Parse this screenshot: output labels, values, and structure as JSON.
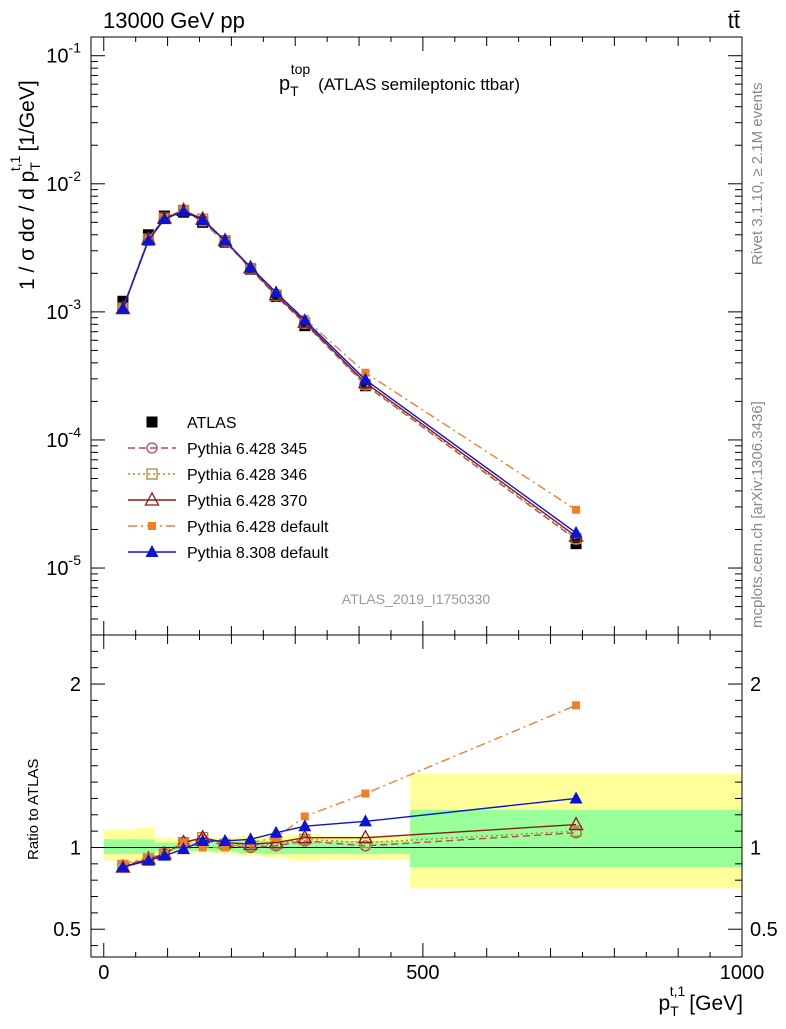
{
  "header": {
    "energy_label": "13000 GeV pp",
    "process_label": "tt̄"
  },
  "side_labels": {
    "rivet": "Rivet 3.1.10, ≥ 2.1M events",
    "mcplots": "mcplots.cern.ch [arXiv:1306.3436]"
  },
  "analysis_id": "ATLAS_2019_I1750330",
  "chart_data": [
    {
      "type": "scatter",
      "title_main": "p",
      "title_sub": "T",
      "title_sup": "top",
      "title_rest": "(ATLAS semileptonic ttbar)",
      "ylabel_main": "1 / σ dσ / d p",
      "ylabel_sup": "t,1",
      "ylabel_sub": "T",
      "ylabel_unit": "[1/GeV]",
      "yscale": "log",
      "ylim": [
        3e-06,
        0.14
      ],
      "xlim": [
        -20,
        1000
      ],
      "y_tick_labels": [
        "10",
        "10",
        "10",
        "10",
        "10"
      ],
      "y_tick_exponents": [
        "-5",
        "-4",
        "-3",
        "-2",
        "-1"
      ],
      "y_tick_values": [
        1e-05,
        0.0001,
        0.001,
        0.01,
        0.1
      ],
      "legend_position": "bottom-left",
      "x": [
        30,
        70,
        95,
        125,
        155,
        190,
        230,
        270,
        315,
        410,
        740
      ],
      "series": [
        {
          "name": "ATLAS",
          "color": "#000000",
          "marker": "filled-square",
          "line": "none",
          "values": [
            0.00121,
            0.004,
            0.0056,
            0.006,
            0.005,
            0.0035,
            0.00215,
            0.00132,
            0.00078,
            0.000265,
            1.55e-05
          ]
        },
        {
          "name": "Pythia 6.428 345",
          "color": "#b5485e",
          "marker": "open-circle",
          "line": "dashed",
          "values": [
            0.00108,
            0.0037,
            0.0054,
            0.0062,
            0.0052,
            0.00355,
            0.00216,
            0.00133,
            0.00081,
            0.000268,
            1.67e-05
          ]
        },
        {
          "name": "Pythia 6.428 346",
          "color": "#b8862e",
          "marker": "open-square",
          "line": "dotted",
          "values": [
            0.00107,
            0.0037,
            0.0054,
            0.0062,
            0.0053,
            0.0036,
            0.00218,
            0.00135,
            0.00082,
            0.000272,
            1.7e-05
          ]
        },
        {
          "name": "Pythia 6.428 370",
          "color": "#8b1a1a",
          "marker": "open-triangle",
          "line": "solid",
          "values": [
            0.00106,
            0.0037,
            0.0054,
            0.0062,
            0.0053,
            0.0036,
            0.0022,
            0.00136,
            0.00083,
            0.00028,
            1.77e-05
          ]
        },
        {
          "name": "Pythia 6.428 default",
          "color": "#f07f2a",
          "marker": "filled-square-small",
          "line": "dashdot",
          "values": [
            0.00108,
            0.0037,
            0.0054,
            0.0062,
            0.005,
            0.0035,
            0.0022,
            0.0014,
            0.00088,
            0.000335,
            2.85e-05
          ]
        },
        {
          "name": "Pythia 8.308 default",
          "color": "#0a14d2",
          "marker": "filled-triangle",
          "line": "solid",
          "values": [
            0.00106,
            0.0036,
            0.0053,
            0.0061,
            0.0052,
            0.0036,
            0.00223,
            0.00142,
            0.00086,
            0.000295,
            1.88e-05
          ]
        }
      ]
    },
    {
      "type": "scatter",
      "ylabel": "Ratio to ATLAS",
      "xlabel_main": "p",
      "xlabel_sup": "t,1",
      "xlabel_sub": "T",
      "xlabel_unit": "[GeV]",
      "ylim": [
        0.33,
        2.3
      ],
      "xlim": [
        -20,
        1000
      ],
      "x_ticks": [
        0,
        500,
        1000
      ],
      "x_tick_labels": [
        "0",
        "500",
        "1000"
      ],
      "y_ticks": [
        0.5,
        1,
        2
      ],
      "y_tick_labels": [
        "0.5",
        "1",
        "2"
      ],
      "reference_line": 1,
      "bands": {
        "bins": [
          [
            0,
            50
          ],
          [
            50,
            80
          ],
          [
            80,
            110
          ],
          [
            110,
            140
          ],
          [
            140,
            170
          ],
          [
            170,
            210
          ],
          [
            210,
            250
          ],
          [
            250,
            290
          ],
          [
            290,
            340
          ],
          [
            340,
            480
          ],
          [
            480,
            1000
          ]
        ],
        "inner": [
          [
            0.96,
            1.05
          ],
          [
            0.96,
            1.05
          ],
          [
            0.98,
            1.03
          ],
          [
            0.98,
            1.03
          ],
          [
            0.98,
            1.03
          ],
          [
            0.975,
            1.035
          ],
          [
            0.965,
            1.04
          ],
          [
            0.96,
            1.04
          ],
          [
            0.96,
            1.04
          ],
          [
            0.96,
            1.04
          ],
          [
            0.88,
            1.23
          ]
        ],
        "outer": [
          [
            0.92,
            1.11
          ],
          [
            0.92,
            1.12
          ],
          [
            0.96,
            1.06
          ],
          [
            0.96,
            1.05
          ],
          [
            0.97,
            1.05
          ],
          [
            0.96,
            1.06
          ],
          [
            0.95,
            1.07
          ],
          [
            0.94,
            1.07
          ],
          [
            0.92,
            1.08
          ],
          [
            0.93,
            1.07
          ],
          [
            0.75,
            1.45
          ]
        ],
        "inner_color": "#99ff99",
        "outer_color": "#ffff99"
      },
      "series": [
        {
          "name": "Pythia 6.428 345",
          "color": "#b5485e",
          "marker": "open-circle",
          "line": "dashed",
          "values": [
            0.89,
            0.93,
            0.96,
            1.03,
            1.05,
            1.01,
            1.0,
            1.01,
            1.04,
            1.01,
            1.09
          ]
        },
        {
          "name": "Pythia 6.428 346",
          "color": "#b8862e",
          "marker": "open-square",
          "line": "dotted",
          "values": [
            0.89,
            0.93,
            0.96,
            1.03,
            1.06,
            1.02,
            1.01,
            1.02,
            1.05,
            1.03,
            1.1
          ]
        },
        {
          "name": "Pythia 6.428 370",
          "color": "#8b1a1a",
          "marker": "open-triangle",
          "line": "solid",
          "values": [
            0.88,
            0.93,
            0.96,
            1.03,
            1.06,
            1.03,
            1.02,
            1.03,
            1.06,
            1.06,
            1.14
          ]
        },
        {
          "name": "Pythia 6.428 default",
          "color": "#f07f2a",
          "marker": "filled-square-small",
          "line": "dashdot",
          "values": [
            0.9,
            0.94,
            0.96,
            1.03,
            1.0,
            1.0,
            1.03,
            1.06,
            1.19,
            1.33,
            1.87
          ]
        },
        {
          "name": "Pythia 8.308 default",
          "color": "#0a14d2",
          "marker": "filled-triangle",
          "line": "solid",
          "values": [
            0.88,
            0.92,
            0.95,
            0.99,
            1.04,
            1.04,
            1.05,
            1.09,
            1.13,
            1.16,
            1.3
          ]
        }
      ]
    }
  ]
}
